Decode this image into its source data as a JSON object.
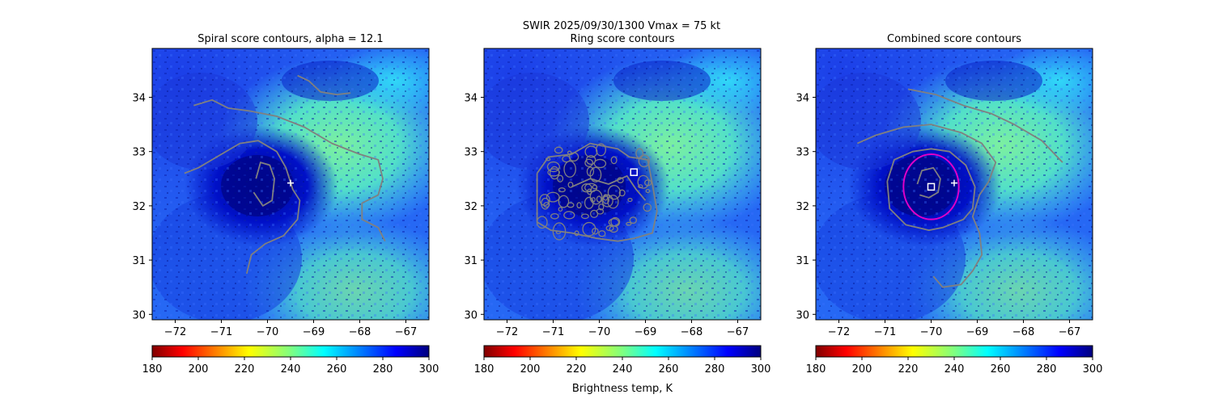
{
  "suptitle_line1": "SWIR  2025/09/30/1300    Vmax = 75 kt",
  "colorbar_label": "Brightness temp, K",
  "chart_data": {
    "type": "heatmap",
    "suptitle": "SWIR  2025/09/30/1300    Vmax = 75 kt",
    "xlim": [
      -72.5,
      -66.5
    ],
    "ylim": [
      29.9,
      34.9
    ],
    "xticks": [
      -72,
      -71,
      -70,
      -69,
      -68,
      -67
    ],
    "yticks": [
      30,
      31,
      32,
      33,
      34
    ],
    "colorbar": {
      "label": "Brightness temp, K",
      "range": [
        180,
        300
      ],
      "ticks": [
        180,
        200,
        220,
        240,
        260,
        280,
        300
      ],
      "colormap": "jet_r"
    },
    "panels": [
      {
        "title": "Spiral score contours, alpha = 12.1",
        "markers": [
          {
            "type": "plus",
            "lon": -69.5,
            "lat": 32.42
          }
        ],
        "contours": [
          {
            "color": "#808080",
            "points": [
              [
                -70.25,
                32.5
              ],
              [
                -70.15,
                32.8
              ],
              [
                -69.95,
                32.75
              ],
              [
                -69.85,
                32.5
              ],
              [
                -69.9,
                32.1
              ],
              [
                -70.1,
                32.0
              ],
              [
                -70.3,
                32.25
              ]
            ]
          },
          {
            "color": "#808080",
            "points": [
              [
                -71.8,
                32.6
              ],
              [
                -71.5,
                32.7
              ],
              [
                -71.0,
                32.95
              ],
              [
                -70.6,
                33.15
              ],
              [
                -70.2,
                33.2
              ],
              [
                -69.8,
                33.0
              ],
              [
                -69.6,
                32.7
              ],
              [
                -69.45,
                32.3
              ],
              [
                -69.3,
                32.1
              ],
              [
                -69.35,
                31.75
              ],
              [
                -69.65,
                31.45
              ],
              [
                -70.05,
                31.3
              ],
              [
                -70.35,
                31.1
              ],
              [
                -70.45,
                30.75
              ]
            ]
          },
          {
            "color": "#808080",
            "points": [
              [
                -71.6,
                33.85
              ],
              [
                -71.2,
                33.95
              ],
              [
                -70.85,
                33.8
              ],
              [
                -70.4,
                33.75
              ],
              [
                -69.8,
                33.65
              ],
              [
                -69.2,
                33.45
              ],
              [
                -68.6,
                33.15
              ],
              [
                -68.0,
                32.95
              ],
              [
                -67.6,
                32.85
              ],
              [
                -67.5,
                32.5
              ],
              [
                -67.6,
                32.2
              ],
              [
                -67.95,
                32.05
              ],
              [
                -67.95,
                31.75
              ],
              [
                -67.6,
                31.6
              ],
              [
                -67.45,
                31.35
              ]
            ]
          },
          {
            "color": "#808080",
            "points": [
              [
                -69.35,
                34.4
              ],
              [
                -69.1,
                34.3
              ],
              [
                -68.85,
                34.1
              ],
              [
                -68.5,
                34.05
              ],
              [
                -68.2,
                34.08
              ]
            ]
          }
        ]
      },
      {
        "title": "Ring score contours",
        "markers": [
          {
            "type": "square",
            "lon": -69.25,
            "lat": 32.62
          }
        ],
        "contours": [
          {
            "color": "#808080",
            "points": [
              [
                -71.35,
                32.6
              ],
              [
                -71.1,
                32.9
              ],
              [
                -70.6,
                32.95
              ],
              [
                -70.2,
                33.15
              ],
              [
                -69.6,
                33.05
              ],
              [
                -69.35,
                32.9
              ],
              [
                -68.95,
                32.85
              ],
              [
                -68.85,
                32.4
              ],
              [
                -68.75,
                31.9
              ],
              [
                -68.85,
                31.5
              ],
              [
                -69.25,
                31.4
              ],
              [
                -69.6,
                31.35
              ],
              [
                -70.05,
                31.4
              ],
              [
                -70.6,
                31.5
              ],
              [
                -71.05,
                31.55
              ],
              [
                -71.35,
                31.7
              ],
              [
                -71.35,
                32.2
              ],
              [
                -71.35,
                32.6
              ]
            ]
          },
          {
            "color": "#808080",
            "points": [
              [
                -70.6,
                32.35
              ],
              [
                -70.2,
                32.5
              ],
              [
                -69.8,
                32.4
              ],
              [
                -69.4,
                32.55
              ],
              [
                -69.2,
                32.3
              ],
              [
                -69.0,
                32.1
              ]
            ]
          }
        ]
      },
      {
        "title": "Combined score contours",
        "markers": [
          {
            "type": "plus",
            "lon": -69.5,
            "lat": 32.42
          },
          {
            "type": "square",
            "lon": -70.0,
            "lat": 32.35
          }
        ],
        "circle": {
          "lon": -70.0,
          "lat": 32.35,
          "radius_deg": 0.6,
          "color": "#e000c8"
        },
        "contours": [
          {
            "color": "#808080",
            "points": [
              [
                -70.3,
                32.4
              ],
              [
                -70.2,
                32.65
              ],
              [
                -69.95,
                32.7
              ],
              [
                -69.8,
                32.5
              ],
              [
                -69.85,
                32.25
              ],
              [
                -70.05,
                32.15
              ],
              [
                -70.25,
                32.2
              ]
            ]
          },
          {
            "color": "#808080",
            "points": [
              [
                -70.95,
                32.45
              ],
              [
                -70.8,
                32.85
              ],
              [
                -70.4,
                33.0
              ],
              [
                -70.0,
                33.05
              ],
              [
                -69.6,
                33.0
              ],
              [
                -69.25,
                32.75
              ],
              [
                -69.05,
                32.35
              ],
              [
                -69.1,
                31.95
              ],
              [
                -69.3,
                31.75
              ],
              [
                -69.75,
                31.6
              ],
              [
                -70.05,
                31.55
              ],
              [
                -70.55,
                31.65
              ],
              [
                -70.9,
                31.95
              ],
              [
                -70.95,
                32.45
              ]
            ]
          },
          {
            "color": "#808080",
            "points": [
              [
                -71.6,
                33.15
              ],
              [
                -71.2,
                33.3
              ],
              [
                -70.6,
                33.45
              ],
              [
                -70.0,
                33.5
              ],
              [
                -69.35,
                33.35
              ],
              [
                -68.9,
                33.15
              ],
              [
                -68.6,
                32.8
              ],
              [
                -68.75,
                32.45
              ],
              [
                -68.95,
                32.2
              ],
              [
                -69.1,
                31.8
              ],
              [
                -68.95,
                31.5
              ],
              [
                -68.9,
                31.1
              ],
              [
                -69.1,
                30.8
              ],
              [
                -69.35,
                30.55
              ],
              [
                -69.75,
                30.5
              ],
              [
                -69.95,
                30.7
              ]
            ]
          },
          {
            "color": "#808080",
            "points": [
              [
                -70.5,
                34.15
              ],
              [
                -69.9,
                34.05
              ],
              [
                -69.3,
                33.85
              ],
              [
                -68.7,
                33.7
              ],
              [
                -68.2,
                33.5
              ],
              [
                -67.6,
                33.2
              ],
              [
                -67.15,
                32.8
              ]
            ]
          }
        ]
      }
    ]
  }
}
